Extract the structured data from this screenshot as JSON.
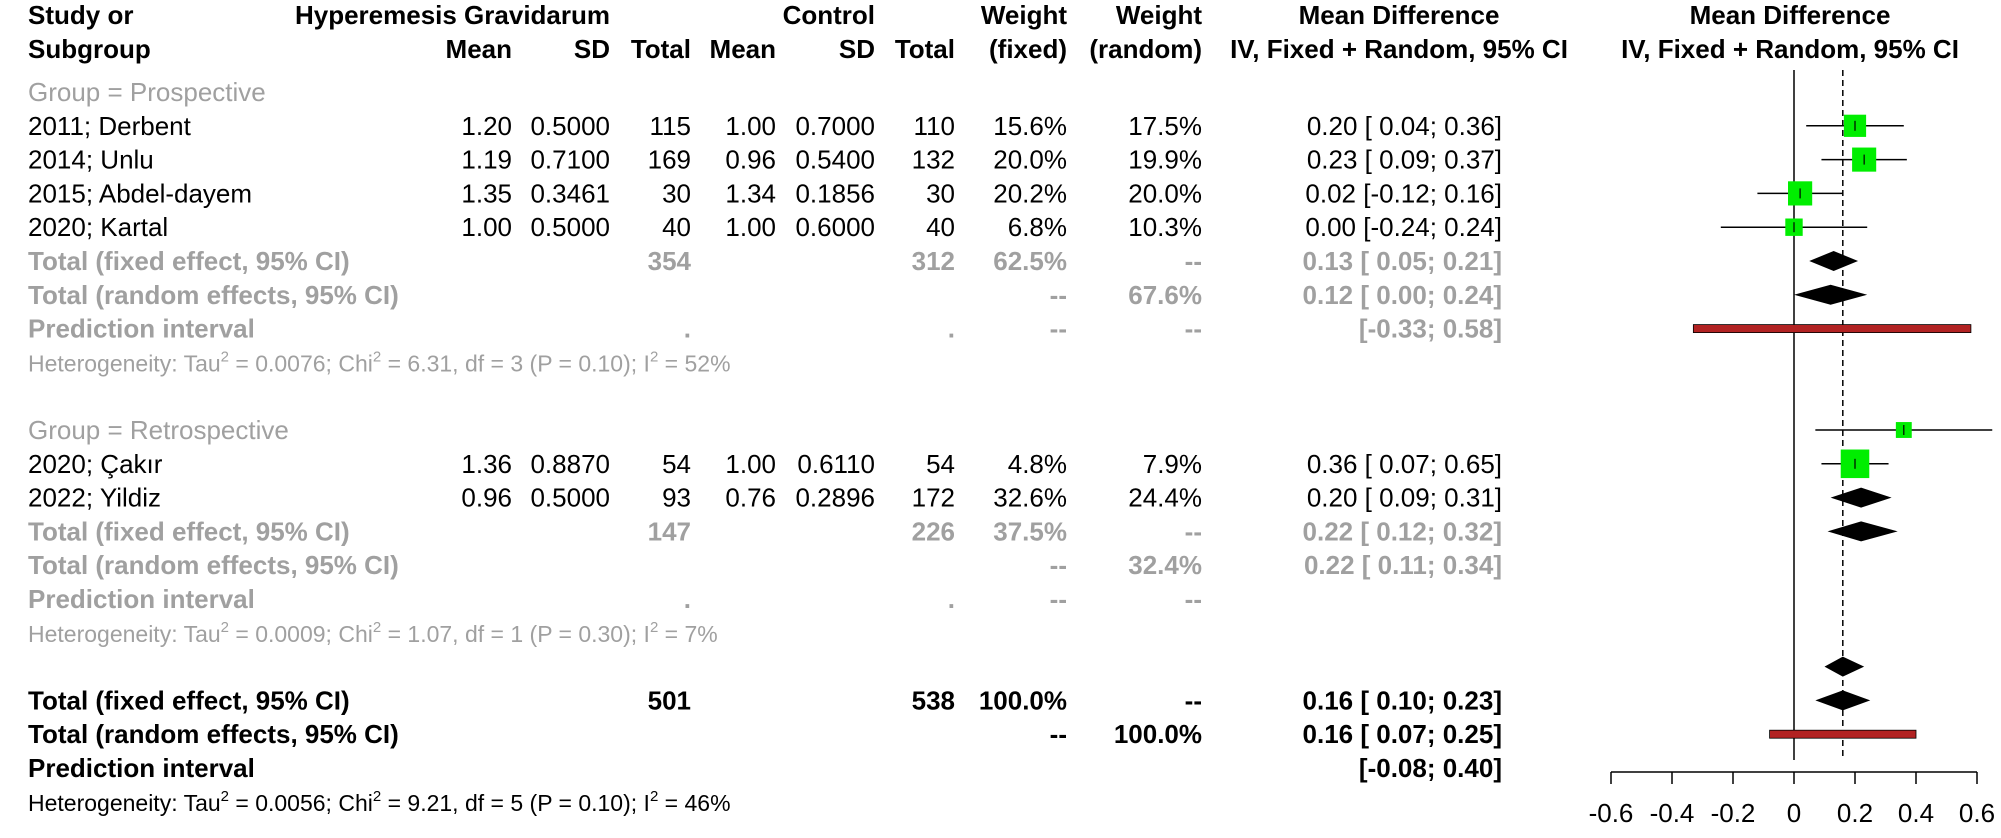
{
  "header": {
    "row1": {
      "study": "Study or",
      "experimental": "Hyperemesis Gravidarum",
      "control": "Control",
      "weight_fixed": "Weight",
      "weight_random": "Weight",
      "md": "Mean Difference",
      "plot": "Mean Difference"
    },
    "row2": {
      "study": "Subgroup",
      "e_mean": "Mean",
      "e_sd": "SD",
      "e_total": "Total",
      "c_mean": "Mean",
      "c_sd": "SD",
      "c_total": "Total",
      "weight_fixed": "(fixed)",
      "weight_random": "(random)",
      "md": "IV, Fixed + Random, 95% CI",
      "plot": "IV, Fixed + Random, 95% CI"
    }
  },
  "rows": [
    {
      "kind": "group",
      "label": "Group = Prospective"
    },
    {
      "kind": "study",
      "label": "2011; Derbent",
      "e_mean": "1.20",
      "e_sd": "0.5000",
      "e_total": "115",
      "c_mean": "1.00",
      "c_sd": "0.7000",
      "c_total": "110",
      "w_fixed": "15.6%",
      "w_random": "17.5%",
      "ci": "0.20 [ 0.04; 0.36]"
    },
    {
      "kind": "study",
      "label": "2014; Unlu",
      "e_mean": "1.19",
      "e_sd": "0.7100",
      "e_total": "169",
      "c_mean": "0.96",
      "c_sd": "0.5400",
      "c_total": "132",
      "w_fixed": "20.0%",
      "w_random": "19.9%",
      "ci": "0.23 [ 0.09; 0.37]"
    },
    {
      "kind": "study",
      "label": "2015; Abdel-dayem",
      "e_mean": "1.35",
      "e_sd": "0.3461",
      "e_total": "30",
      "c_mean": "1.34",
      "c_sd": "0.1856",
      "c_total": "30",
      "w_fixed": "20.2%",
      "w_random": "20.0%",
      "ci": "0.02 [-0.12; 0.16]"
    },
    {
      "kind": "study",
      "label": "2020; Kartal",
      "e_mean": "1.00",
      "e_sd": "0.5000",
      "e_total": "40",
      "c_mean": "1.00",
      "c_sd": "0.6000",
      "c_total": "40",
      "w_fixed": "6.8%",
      "w_random": "10.3%",
      "ci": "0.00 [-0.24; 0.24]"
    },
    {
      "kind": "sub",
      "label": "Total (fixed effect, 95% CI)",
      "e_total": "354",
      "c_total": "312",
      "w_fixed": "62.5%",
      "w_random": "--",
      "ci": "0.13 [ 0.05; 0.21]"
    },
    {
      "kind": "sub",
      "label": "Total (random effects, 95% CI)",
      "w_fixed": "--",
      "w_random": "67.6%",
      "ci": "0.12 [ 0.00; 0.24]"
    },
    {
      "kind": "sub",
      "label": "Prediction interval",
      "e_total": ".",
      "c_total": ".",
      "w_fixed": "--",
      "w_random": "--",
      "ci": "[-0.33; 0.58]"
    },
    {
      "kind": "het",
      "label": "Heterogeneity: Tau",
      "tail": " = 0.0076; Chi",
      "tail2": " = 6.31, df = 3 (P = 0.10); I",
      "tail3": " = 52%"
    },
    {
      "kind": "blank"
    },
    {
      "kind": "group",
      "label": "Group = Retrospective"
    },
    {
      "kind": "study",
      "label": "2020; Çakır",
      "e_mean": "1.36",
      "e_sd": "0.8870",
      "e_total": "54",
      "c_mean": "1.00",
      "c_sd": "0.6110",
      "c_total": "54",
      "w_fixed": "4.8%",
      "w_random": "7.9%",
      "ci": "0.36 [ 0.07; 0.65]"
    },
    {
      "kind": "study",
      "label": "2022; Yildiz",
      "e_mean": "0.96",
      "e_sd": "0.5000",
      "e_total": "93",
      "c_mean": "0.76",
      "c_sd": "0.2896",
      "c_total": "172",
      "w_fixed": "32.6%",
      "w_random": "24.4%",
      "ci": "0.20 [ 0.09; 0.31]"
    },
    {
      "kind": "sub",
      "label": "Total (fixed effect, 95% CI)",
      "e_total": "147",
      "c_total": "226",
      "w_fixed": "37.5%",
      "w_random": "--",
      "ci": "0.22 [ 0.12; 0.32]"
    },
    {
      "kind": "sub",
      "label": "Total (random effects, 95% CI)",
      "w_fixed": "--",
      "w_random": "32.4%",
      "ci": "0.22 [ 0.11; 0.34]"
    },
    {
      "kind": "sub",
      "label": "Prediction interval",
      "e_total": ".",
      "c_total": ".",
      "w_fixed": "--",
      "w_random": "--",
      "ci": ""
    },
    {
      "kind": "het",
      "label": "Heterogeneity: Tau",
      "tail": " = 0.0009; Chi",
      "tail2": " = 1.07, df = 1 (P = 0.30); I",
      "tail3": " = 7%"
    },
    {
      "kind": "blank"
    },
    {
      "kind": "overall",
      "label": "Total (fixed effect, 95% CI)",
      "e_total": "501",
      "c_total": "538",
      "w_fixed": "100.0%",
      "w_random": "--",
      "ci": "0.16 [ 0.10; 0.23]"
    },
    {
      "kind": "overall",
      "label": "Total (random effects, 95% CI)",
      "w_fixed": "--",
      "w_random": "100.0%",
      "ci": "0.16 [ 0.07; 0.25]"
    },
    {
      "kind": "overall",
      "label": "Prediction interval",
      "ci": "[-0.08; 0.40]"
    },
    {
      "kind": "het_overall",
      "label": "Heterogeneity: Tau",
      "tail": " = 0.0056; Chi",
      "tail2": " = 9.21, df = 5 (P = 0.10); I",
      "tail3": " = 46%"
    }
  ],
  "chart_data": {
    "type": "forest",
    "x_axis": {
      "range": [
        -0.6,
        0.6
      ],
      "ticks": [
        "-0.6",
        "-0.4",
        "-0.2",
        "0",
        "0.2",
        "0.4",
        "0.6"
      ],
      "tick_values": [
        -0.6,
        -0.4,
        -0.2,
        0,
        0.2,
        0.4,
        0.6
      ]
    },
    "reference_line": 0,
    "pooled_line": 0.16,
    "studies": [
      {
        "row": 1,
        "est": 0.2,
        "lo": 0.04,
        "hi": 0.36,
        "weight": 15.6
      },
      {
        "row": 2,
        "est": 0.23,
        "lo": 0.09,
        "hi": 0.37,
        "weight": 20.0
      },
      {
        "row": 3,
        "est": 0.02,
        "lo": -0.12,
        "hi": 0.16,
        "weight": 20.2
      },
      {
        "row": 4,
        "est": 0.0,
        "lo": -0.24,
        "hi": 0.24,
        "weight": 6.8
      },
      {
        "row": 10,
        "est": 0.36,
        "lo": 0.07,
        "hi": 0.65,
        "weight": 4.8
      },
      {
        "row": 11,
        "est": 0.2,
        "lo": 0.09,
        "hi": 0.31,
        "weight": 32.6
      }
    ],
    "diamonds": [
      {
        "row": 5,
        "est": 0.13,
        "lo": 0.05,
        "hi": 0.21
      },
      {
        "row": 6,
        "est": 0.12,
        "lo": 0.0,
        "hi": 0.24
      },
      {
        "row": 12,
        "est": 0.22,
        "lo": 0.12,
        "hi": 0.32
      },
      {
        "row": 13,
        "est": 0.22,
        "lo": 0.11,
        "hi": 0.34
      },
      {
        "row": 17,
        "est": 0.16,
        "lo": 0.1,
        "hi": 0.23
      },
      {
        "row": 18,
        "est": 0.16,
        "lo": 0.07,
        "hi": 0.25
      }
    ],
    "prediction_intervals": [
      {
        "row": 7,
        "lo": -0.33,
        "hi": 0.58
      },
      {
        "row": 19,
        "lo": -0.08,
        "hi": 0.4
      }
    ],
    "colors": {
      "square": "#00ee00",
      "diamond": "#000000",
      "prediction": "#b22222",
      "grey_text": "#a0a0a0"
    }
  }
}
